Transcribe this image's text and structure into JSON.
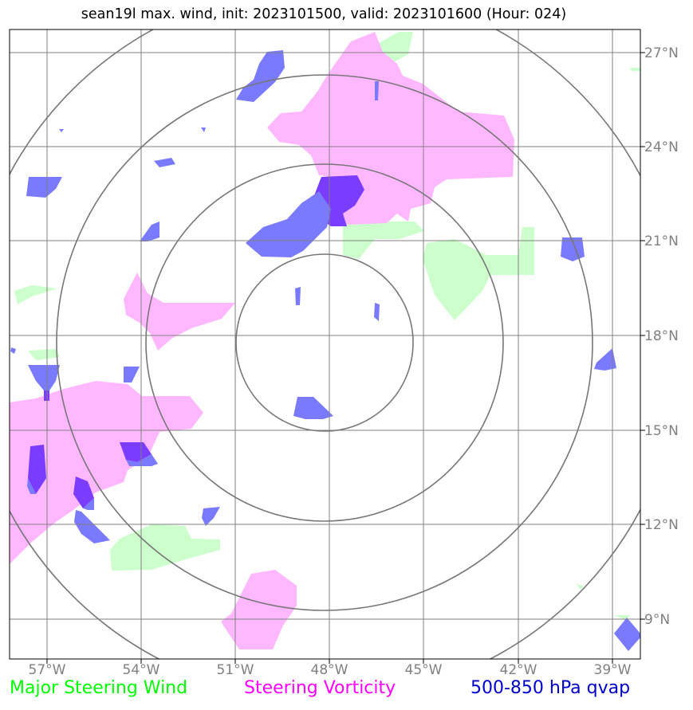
{
  "title": "sean19l max. wind, init: 2023101500, valid: 2023101600 (Hour: 024)",
  "lon_labels": [
    "57°W",
    "54°W",
    "51°W",
    "48°W",
    "45°W",
    "42°W",
    "39°W"
  ],
  "lat_labels": [
    "27°N",
    "24°N",
    "21°N",
    "18°N",
    "15°N",
    "12°N",
    "9°N"
  ],
  "legend": {
    "green": "Major Steering Wind",
    "magenta": "Steering Vorticity",
    "blue": "500-850 hPa qvap"
  },
  "colors": {
    "green": "#00ff00",
    "magenta": "#ff00ff",
    "blue": "#0000cc",
    "green_fill": "#ccffcc",
    "magenta_fill": "#ffb8ff",
    "blue_fill": "#7a7aff",
    "purple_fill": "#7a3cff",
    "grid": "#808080"
  },
  "map": {
    "center": {
      "lon": -48,
      "lat": 17.8
    },
    "lon_range": [
      -58.2,
      -38.2
    ],
    "lat_range": [
      7.9,
      27.9
    ],
    "ring_radii_deg": [
      2.8,
      5.6,
      8.4,
      11.2
    ]
  }
}
